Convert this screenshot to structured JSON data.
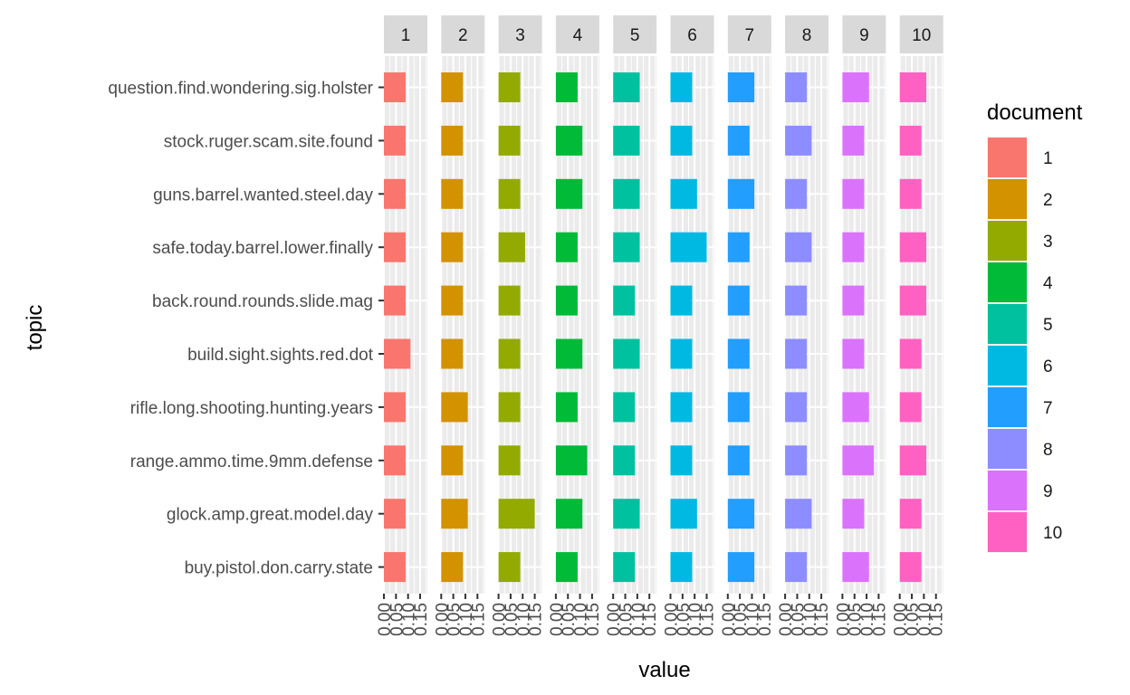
{
  "chart_data": {
    "type": "bar",
    "orientation": "horizontal",
    "facet_by": "document",
    "xlabel": "value",
    "ylabel": "topic",
    "xlim": [
      0,
      0.18
    ],
    "x_ticks": [
      "0.00",
      "0.05",
      "0.10",
      "0.15"
    ],
    "x_tick_values": [
      0,
      0.05,
      0.1,
      0.15
    ],
    "grid": true,
    "legend": {
      "title": "document",
      "position": "right"
    },
    "topics": [
      "question.find.wondering.sig.holster",
      "stock.ruger.scam.site.found",
      "guns.barrel.wanted.steel.day",
      "safe.today.barrel.lower.finally",
      "back.round.rounds.slide.mag",
      "build.sight.sights.red.dot",
      "rifle.long.shooting.hunting.years",
      "range.ammo.time.9mm.defense",
      "glock.amp.great.model.day",
      "buy.pistol.don.carry.state"
    ],
    "panels": [
      {
        "document": "1",
        "color": "#F8766D",
        "values": [
          0.09,
          0.09,
          0.09,
          0.09,
          0.09,
          0.11,
          0.09,
          0.09,
          0.09,
          0.09
        ]
      },
      {
        "document": "2",
        "color": "#D39200",
        "values": [
          0.09,
          0.09,
          0.09,
          0.09,
          0.09,
          0.09,
          0.11,
          0.09,
          0.11,
          0.09
        ]
      },
      {
        "document": "3",
        "color": "#93AA00",
        "values": [
          0.09,
          0.09,
          0.09,
          0.11,
          0.09,
          0.09,
          0.09,
          0.09,
          0.15,
          0.09
        ]
      },
      {
        "document": "4",
        "color": "#00BA38",
        "values": [
          0.09,
          0.11,
          0.11,
          0.09,
          0.09,
          0.11,
          0.09,
          0.13,
          0.11,
          0.09
        ]
      },
      {
        "document": "5",
        "color": "#00C19F",
        "values": [
          0.11,
          0.11,
          0.11,
          0.11,
          0.09,
          0.11,
          0.09,
          0.09,
          0.11,
          0.09
        ]
      },
      {
        "document": "6",
        "color": "#00B9E3",
        "values": [
          0.09,
          0.09,
          0.11,
          0.15,
          0.09,
          0.09,
          0.09,
          0.09,
          0.11,
          0.09
        ]
      },
      {
        "document": "7",
        "color": "#219EFF",
        "values": [
          0.11,
          0.09,
          0.11,
          0.09,
          0.09,
          0.09,
          0.09,
          0.09,
          0.11,
          0.11
        ]
      },
      {
        "document": "8",
        "color": "#8D8DFF",
        "values": [
          0.09,
          0.11,
          0.09,
          0.11,
          0.09,
          0.09,
          0.09,
          0.09,
          0.11,
          0.09
        ]
      },
      {
        "document": "9",
        "color": "#DB72FB",
        "values": [
          0.11,
          0.09,
          0.09,
          0.09,
          0.09,
          0.09,
          0.11,
          0.13,
          0.09,
          0.11
        ]
      },
      {
        "document": "10",
        "color": "#FF61C3",
        "values": [
          0.11,
          0.09,
          0.09,
          0.11,
          0.11,
          0.09,
          0.09,
          0.11,
          0.09,
          0.09
        ]
      }
    ]
  }
}
